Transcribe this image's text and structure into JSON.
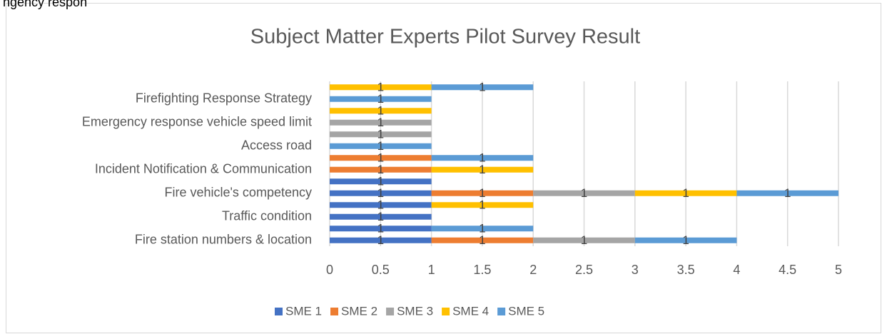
{
  "page_fragment": "ngency respon",
  "chart_data": {
    "type": "bar",
    "orientation": "horizontal",
    "stacked": true,
    "title": "Subject Matter Experts Pilot Survey Result",
    "categories": [
      "Fire station numbers & location",
      null,
      "Traffic condition",
      null,
      "Fire vehicle's competency",
      null,
      "Incident Notification & Communication",
      null,
      "Access road",
      null,
      "Emergency response vehicle speed limit",
      null,
      "Firefighting Response Strategy",
      null
    ],
    "series": [
      {
        "name": "SME 1",
        "color": "#4472c4",
        "values": [
          1,
          1,
          1,
          1,
          1,
          1,
          null,
          null,
          null,
          null,
          null,
          null,
          null,
          null
        ]
      },
      {
        "name": "SME 2",
        "color": "#ed7d31",
        "values": [
          1,
          null,
          null,
          null,
          1,
          null,
          1,
          1,
          null,
          null,
          null,
          null,
          null,
          null
        ]
      },
      {
        "name": "SME 3",
        "color": "#a5a5a5",
        "values": [
          1,
          null,
          null,
          null,
          1,
          null,
          null,
          null,
          null,
          1,
          1,
          null,
          null,
          null
        ]
      },
      {
        "name": "SME 4",
        "color": "#ffc000",
        "values": [
          null,
          null,
          null,
          1,
          1,
          null,
          1,
          null,
          null,
          null,
          null,
          1,
          null,
          1
        ]
      },
      {
        "name": "SME 5",
        "color": "#5b9bd5",
        "values": [
          1,
          1,
          null,
          null,
          1,
          null,
          null,
          1,
          1,
          null,
          null,
          null,
          1,
          1
        ]
      }
    ],
    "xlim": [
      0,
      5
    ],
    "xticks": [
      0,
      0.5,
      1,
      1.5,
      2,
      2.5,
      3,
      3.5,
      4,
      4.5,
      5
    ],
    "grid": true,
    "legend": "bottom",
    "data_labels": true
  }
}
